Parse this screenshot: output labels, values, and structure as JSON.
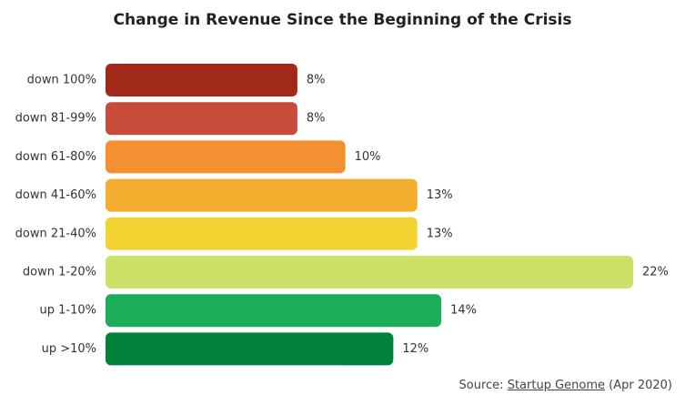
{
  "chart_data": {
    "type": "bar",
    "orientation": "horizontal",
    "title": "Change in Revenue Since the Beginning of the Crisis",
    "xlabel": "",
    "ylabel": "",
    "xlim": [
      0,
      22
    ],
    "grid": false,
    "value_suffix": "%",
    "categories": [
      "down 100%",
      "down 81-99%",
      "down 61-80%",
      "down 41-60%",
      "down 21-40%",
      "down 1-20%",
      "up 1-10%",
      "up >10%"
    ],
    "values": [
      8,
      8,
      10,
      13,
      13,
      22,
      14,
      12
    ],
    "data_labels": [
      "8%",
      "8%",
      "10%",
      "13%",
      "13%",
      "22%",
      "14%",
      "12%"
    ],
    "colors": [
      "#a1291a",
      "#c84c3c",
      "#f39132",
      "#f3ae2f",
      "#f3d332",
      "#cde068",
      "#1aae5a",
      "#01823c"
    ]
  },
  "source": {
    "prefix": "Source: ",
    "link_text": "Startup Genome",
    "suffix": " (Apr 2020)"
  }
}
